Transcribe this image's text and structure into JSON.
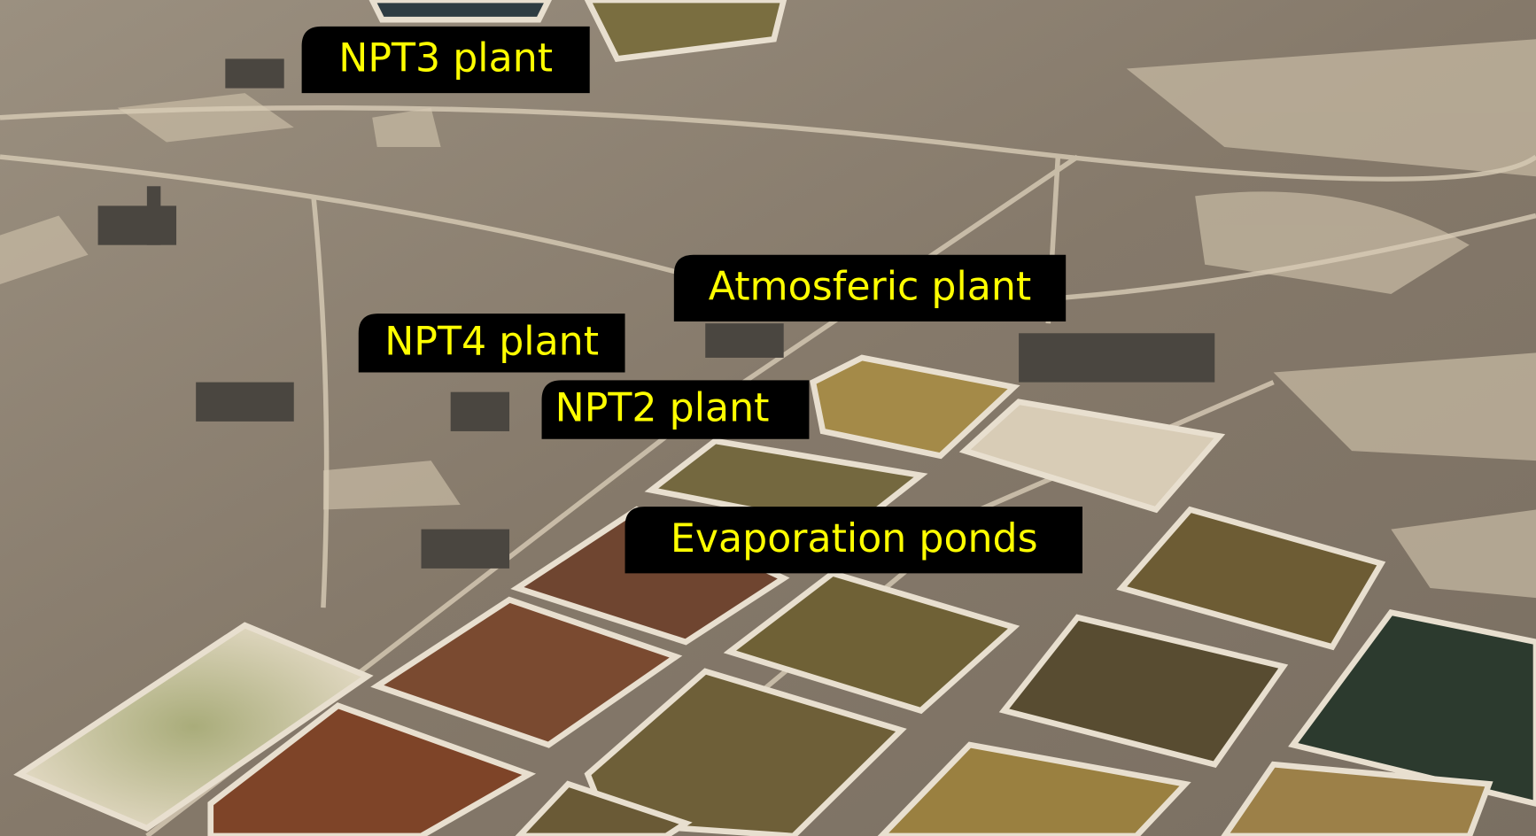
{
  "labels": [
    "NPT3 plant",
    "Atmosferic plant",
    "NPT4 plant",
    "NPT2 plant",
    "Evaporation ponds"
  ]
}
